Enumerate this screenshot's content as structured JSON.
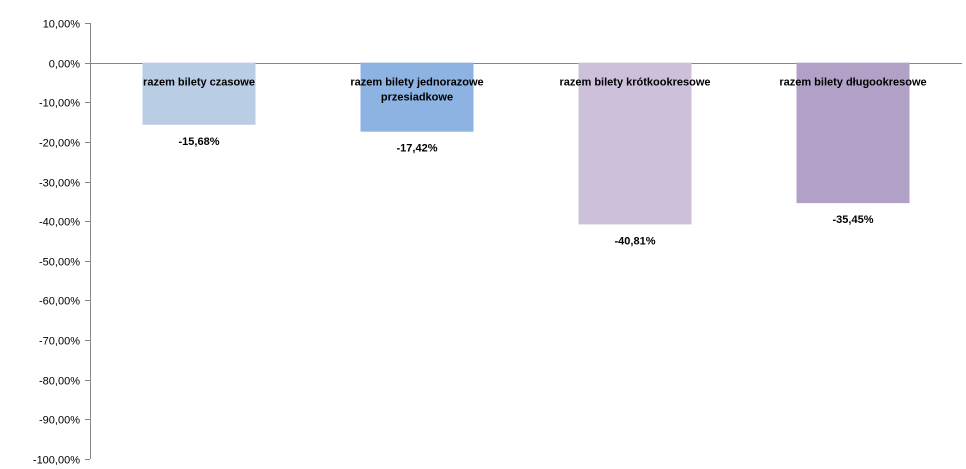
{
  "chart_data": {
    "type": "bar",
    "title": "",
    "xlabel": "",
    "ylabel": "",
    "categories": [
      [
        "razem bilety czasowe"
      ],
      [
        "razem bilety jednorazowe",
        "przesiadkowe"
      ],
      [
        "razem bilety krótkookresowe"
      ],
      [
        "razem bilety długookresowe"
      ]
    ],
    "values": [
      -15.68,
      -17.42,
      -40.81,
      -35.45
    ],
    "data_labels": [
      "-15,68%",
      "-17,42%",
      "-40,81%",
      "-35,45%"
    ],
    "colors": [
      "#b9cde5",
      "#8db3e2",
      "#ccc0da",
      "#b2a1c7"
    ],
    "ylim": [
      -100,
      10
    ],
    "yticks": [
      10,
      0,
      -10,
      -20,
      -30,
      -40,
      -50,
      -60,
      -70,
      -80,
      -90,
      -100
    ],
    "ytick_labels": [
      "10,00%",
      "0,00%",
      "-10,00%",
      "-20,00%",
      "-30,00%",
      "-40,00%",
      "-50,00%",
      "-60,00%",
      "-70,00%",
      "-80,00%",
      "-90,00%",
      "-100,00%"
    ],
    "grid": false,
    "legend": "none"
  }
}
